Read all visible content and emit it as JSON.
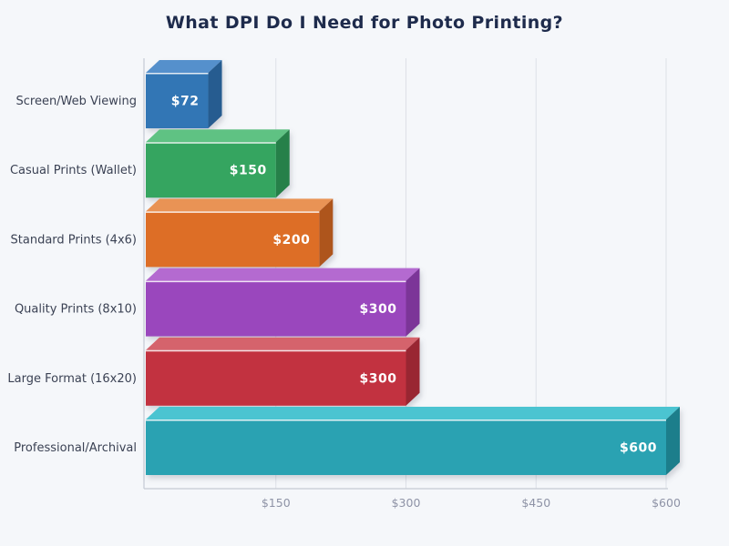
{
  "page": {
    "background": "#f5f7fa"
  },
  "chart_data": {
    "type": "bar",
    "orientation": "horizontal",
    "title": "What DPI Do I Need for Photo Printing?",
    "categories": [
      "Screen/Web Viewing",
      "Casual Prints (Wallet)",
      "Standard Prints (4x6)",
      "Quality Prints (8x10)",
      "Large Format (16x20)",
      "Professional/Archival"
    ],
    "values": [
      72,
      150,
      200,
      300,
      300,
      600
    ],
    "value_labels": [
      "$72",
      "$150",
      "$200",
      "$300",
      "$300",
      "$600"
    ],
    "bar_colors": [
      {
        "front": "#3176b5",
        "top": "#5590cc",
        "side": "#255c90"
      },
      {
        "front": "#36a561",
        "top": "#5fc283",
        "side": "#27804a"
      },
      {
        "front": "#dd6e27",
        "top": "#e99355",
        "side": "#ae551e"
      },
      {
        "front": "#9a46bd",
        "top": "#b46ad0",
        "side": "#7b3698"
      },
      {
        "front": "#c2333f",
        "top": "#d5636c",
        "side": "#992832"
      },
      {
        "front": "#29a2b2",
        "top": "#4cc4d1",
        "side": "#1f7e8b"
      }
    ],
    "xlabel": "",
    "ylabel": "",
    "x_ticks": [
      150,
      300,
      450,
      600
    ],
    "x_tick_labels": [
      "$150",
      "$300",
      "$450",
      "$600"
    ],
    "xlim": [
      0,
      600
    ],
    "grid": true,
    "legend": false,
    "style_3d": true,
    "colors": {
      "title": "#1e2b4c",
      "category_label": "#3b4254",
      "tick_label": "#8e93a6",
      "axis_line": "#c5cad4",
      "grid_line": "#dde0e7",
      "value_label": "#ffffff",
      "edge_highlight": "rgba(255,255,255,0.85)"
    }
  }
}
